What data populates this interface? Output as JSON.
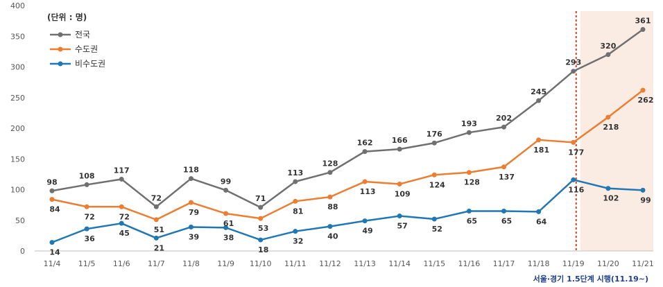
{
  "chart_data": {
    "type": "line",
    "unit_label": "(단위 : 명)",
    "categories": [
      "11/4",
      "11/5",
      "11/6",
      "11/7",
      "11/8",
      "11/9",
      "11/10",
      "11/11",
      "11/12",
      "11/13",
      "11/14",
      "11/15",
      "11/16",
      "11/17",
      "11/18",
      "11/19",
      "11/20",
      "11/21"
    ],
    "ylim": [
      0,
      400
    ],
    "yticks": [
      0,
      50,
      100,
      150,
      200,
      250,
      300,
      350,
      400
    ],
    "grid": false,
    "legend_position": "top-left",
    "series": [
      {
        "name": "전국",
        "color": "#707070",
        "values": [
          98,
          108,
          117,
          72,
          118,
          99,
          71,
          113,
          128,
          162,
          166,
          176,
          193,
          202,
          245,
          293,
          320,
          361
        ]
      },
      {
        "name": "수도권",
        "color": "#ed7d31",
        "values": [
          84,
          72,
          72,
          51,
          79,
          61,
          53,
          81,
          88,
          113,
          109,
          124,
          128,
          137,
          181,
          177,
          218,
          262
        ]
      },
      {
        "name": "비수도권",
        "color": "#1f77b4",
        "values": [
          14,
          36,
          45,
          21,
          39,
          38,
          18,
          32,
          40,
          49,
          57,
          52,
          65,
          65,
          64,
          116,
          102,
          99
        ]
      }
    ],
    "annotation": {
      "text": "서울·경기 1.5단계 시행(11.19~)",
      "marker_category": "11/19",
      "shaded_categories": [
        "11/19",
        "11/20",
        "11/21"
      ],
      "line_color": "#e04020",
      "shade_color": "#fbece3"
    }
  }
}
